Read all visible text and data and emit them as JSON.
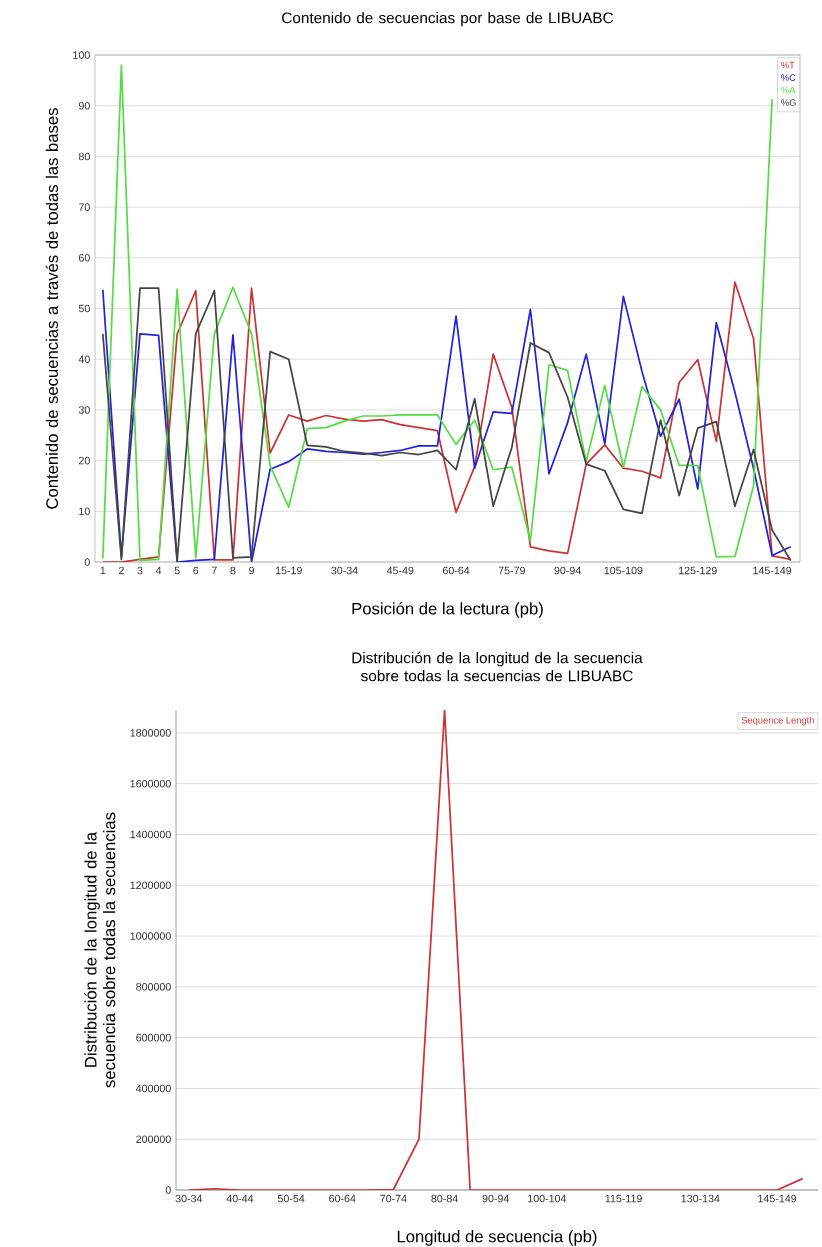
{
  "chart_data": [
    {
      "type": "line",
      "title": "Contenido de secuencias por base de LIBUABC",
      "xlabel": "Posición de la lectura (pb)",
      "ylabel": "Contenido de secuencias a través de todas las bases",
      "categories": [
        "1",
        "2",
        "3",
        "4",
        "5",
        "6",
        "7",
        "8",
        "9",
        null,
        "15-19",
        null,
        null,
        "30-34",
        null,
        null,
        "45-49",
        null,
        null,
        "60-64",
        null,
        null,
        "75-79",
        null,
        null,
        "90-94",
        null,
        null,
        "105-109",
        null,
        null,
        null,
        "125-129",
        null,
        null,
        null,
        "145-149",
        null
      ],
      "series": [
        {
          "name": "%T",
          "color": "#cc3333",
          "values": [
            0,
            0,
            0.5,
            1,
            45,
            53.5,
            0.4,
            0.4,
            54,
            21.5,
            29,
            27.8,
            28.9,
            28.2,
            27.8,
            28.1,
            27.1,
            26.5,
            25.9,
            9.8,
            18.8,
            41,
            30.5,
            3,
            2.2,
            1.7,
            19.3,
            23.1,
            18.5,
            17.9,
            16.6,
            35.4,
            39.9,
            23.8,
            55.2,
            44.1,
            1.2,
            0.5
          ]
        },
        {
          "name": "%C",
          "color": "#2222dd",
          "values": [
            53.7,
            1,
            45,
            44.7,
            0,
            0.3,
            0.5,
            44.8,
            0,
            18.3,
            19.8,
            22.3,
            21.8,
            21.6,
            21.3,
            21.6,
            22,
            22.9,
            22.9,
            48.5,
            18.5,
            29.6,
            29.3,
            49.8,
            17.4,
            27.5,
            41,
            23.3,
            52.4,
            37.6,
            24.8,
            32.1,
            14.4,
            47.2,
            33.5,
            18.5,
            1.3,
            3
          ]
        },
        {
          "name": "%A",
          "color": "#55dd44",
          "values": [
            0.7,
            98,
            0.3,
            0.5,
            53.8,
            0.8,
            45,
            54.2,
            45,
            19,
            10.8,
            26.3,
            26.5,
            27.8,
            28.8,
            28.8,
            29,
            29,
            29,
            23.2,
            28,
            18.2,
            18.7,
            4.2,
            38.9,
            37.8,
            19.8,
            34.8,
            18.7,
            34.6,
            30,
            19.1,
            19,
            1,
            1.1,
            15,
            91.3,
            null
          ]
        },
        {
          "name": "%G",
          "color": "#444444",
          "values": [
            45,
            0.5,
            54,
            54,
            0.2,
            45,
            53.5,
            0.8,
            1,
            41.5,
            40,
            23,
            22.7,
            21.8,
            21.5,
            21,
            21.6,
            21.2,
            22,
            18.2,
            32.2,
            11,
            22.6,
            43.2,
            41.3,
            32.5,
            19.3,
            18,
            10.4,
            9.6,
            28,
            13.1,
            26.4,
            27.7,
            11,
            22.2,
            6.3,
            0.3
          ]
        }
      ],
      "ylim": [
        0,
        100
      ],
      "yticks": [
        0,
        10,
        20,
        30,
        40,
        50,
        60,
        70,
        80,
        90,
        100
      ],
      "grid": "y",
      "legend": "top right"
    },
    {
      "type": "line",
      "title": "Distribución de la longitud de la secuencia sobre todas la secuencias de LIBUABC",
      "xlabel": "Longitud de secuencia (pb)",
      "ylabel": "Distribución de la longitud de la secuencia sobre todas la secuencias",
      "categories": [
        "30-34",
        null,
        "40-44",
        null,
        "50-54",
        null,
        "60-64",
        null,
        "70-74",
        null,
        "80-84",
        null,
        "90-94",
        null,
        "100-104",
        null,
        null,
        "115-119",
        null,
        null,
        "130-134",
        null,
        null,
        "145-149",
        null
      ],
      "series": [
        {
          "name": "Sequence Length",
          "color": "#cc3333",
          "values": [
            0,
            5000,
            0,
            0,
            0,
            0,
            0,
            0,
            2000,
            200000,
            1890000,
            0,
            0,
            0,
            0,
            0,
            0,
            0,
            0,
            0,
            0,
            0,
            0,
            0,
            45000
          ]
        }
      ],
      "ylim": [
        0,
        1890000
      ],
      "yticks": [
        0,
        200000,
        400000,
        600000,
        800000,
        1000000,
        1200000,
        1400000,
        1600000,
        1800000
      ],
      "grid": "y",
      "legend": "top right"
    }
  ]
}
